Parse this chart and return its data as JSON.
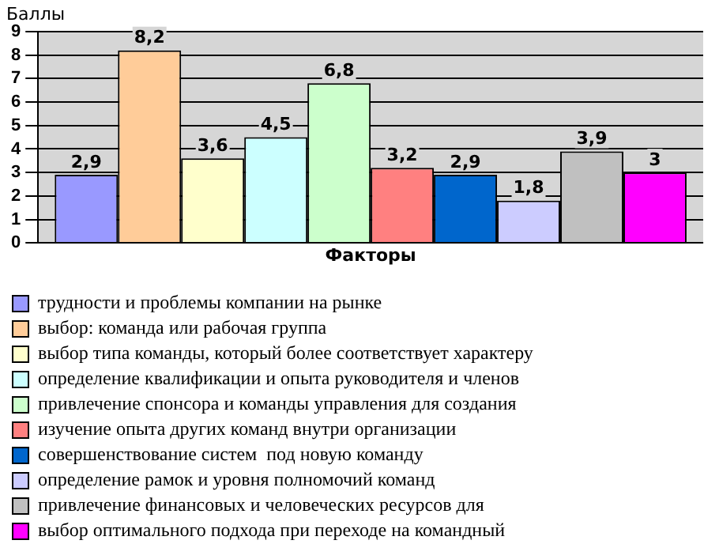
{
  "chart_data": {
    "type": "bar",
    "ylabel": "Баллы",
    "xlabel": "Факторы",
    "categories": [
      null
    ],
    "ylim": [
      0,
      9
    ],
    "yticks": [
      0,
      1,
      2,
      3,
      4,
      5,
      6,
      7,
      8,
      9
    ],
    "grid": "y",
    "legend": "bottom",
    "series": [
      {
        "name": "трудности и проблемы компании на рынке",
        "color": "#9999ff",
        "values": [
          2.9
        ],
        "value_labels": [
          "2,9"
        ]
      },
      {
        "name": "выбор: команда или рабочая группа",
        "color": "#ffcc99",
        "values": [
          8.2
        ],
        "value_labels": [
          "8,2"
        ]
      },
      {
        "name": "выбор типа команды, который более соответствует характеру",
        "color": "#ffffcc",
        "values": [
          3.6
        ],
        "value_labels": [
          "3,6"
        ]
      },
      {
        "name": "определение квалификации и опыта руководителя и членов",
        "color": "#ccffff",
        "values": [
          4.5
        ],
        "value_labels": [
          "4,5"
        ]
      },
      {
        "name": "привлечение спонсора и команды управления для создания",
        "color": "#ccffcc",
        "values": [
          6.8
        ],
        "value_labels": [
          "6,8"
        ]
      },
      {
        "name": "изучение опыта других команд внутри организации",
        "color": "#ff8080",
        "values": [
          3.2
        ],
        "value_labels": [
          "3,2"
        ]
      },
      {
        "name": "совершенствование систем  под новую команду",
        "color": "#0066cc",
        "values": [
          2.9
        ],
        "value_labels": [
          "2,9"
        ]
      },
      {
        "name": "определение рамок и уровня полномочий команд",
        "color": "#ccccff",
        "values": [
          1.8
        ],
        "value_labels": [
          "1,8"
        ]
      },
      {
        "name": "привлечение финансовых и человеческих ресурсов для",
        "color": "#c0c0c0",
        "values": [
          3.9
        ],
        "value_labels": [
          "3,9"
        ]
      },
      {
        "name": "выбор оптимального подхода при переходе на командный",
        "color": "#ff00ff",
        "values": [
          3
        ],
        "value_labels": [
          "3"
        ]
      }
    ]
  }
}
